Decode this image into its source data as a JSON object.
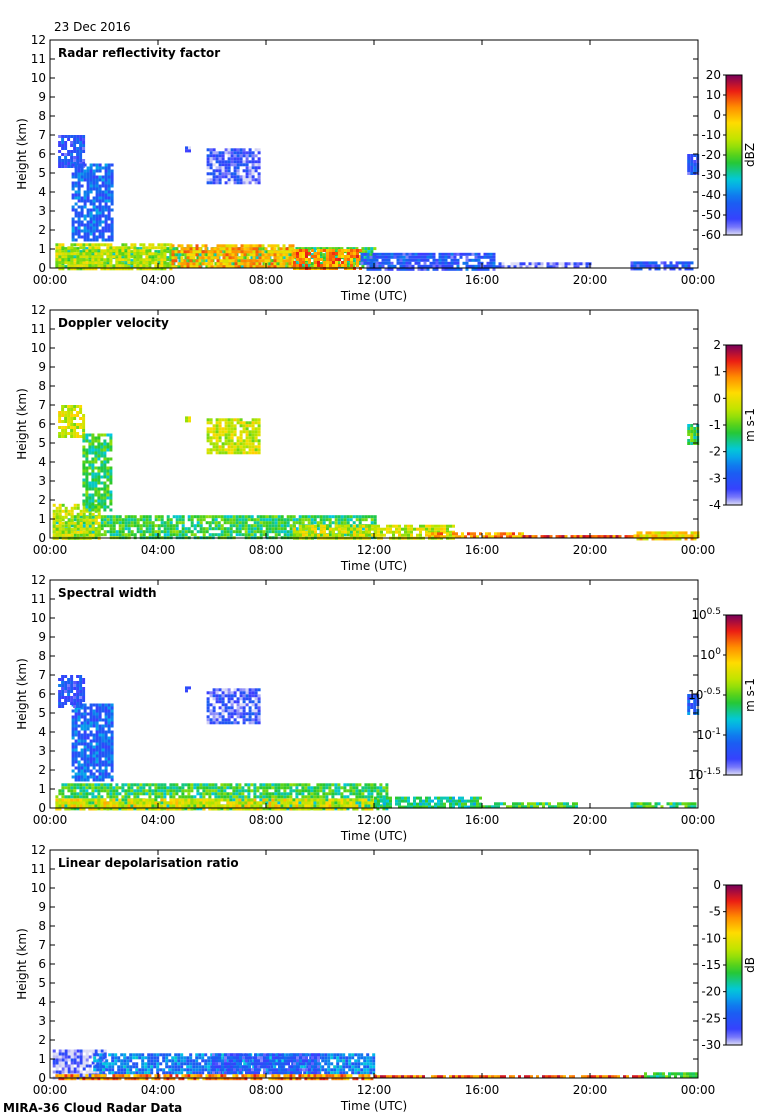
{
  "header": {
    "date": "23 Dec 2016"
  },
  "footer": {
    "label": "MIRA-36 Cloud Radar Data"
  },
  "colors": {
    "cloud_low": "#2a3fe0",
    "cloud_mid": "#27c22a",
    "cloud_high": "#f0a000",
    "max": "#cc1010"
  },
  "chart_data": [
    {
      "type": "heatmap",
      "title": "Radar reflectivity factor",
      "xlabel": "Time (UTC)",
      "ylabel": "Height (km)",
      "xticks": [
        "00:00",
        "04:00",
        "08:00",
        "12:00",
        "16:00",
        "20:00",
        "00:00"
      ],
      "xlim": [
        0,
        24
      ],
      "ylim": [
        0,
        12
      ],
      "yticks": [
        "0",
        "1",
        "2",
        "3",
        "4",
        "5",
        "6",
        "7",
        "8",
        "9",
        "10",
        "11",
        "12"
      ],
      "colorbar": {
        "label": "dBZ",
        "ticks": [
          "20",
          "10",
          "0",
          "-10",
          "-20",
          "-30",
          "-40",
          "-50",
          "-60"
        ]
      },
      "regions": [
        {
          "t": [
            0.2,
            12.0
          ],
          "h": [
            0,
            1.1
          ],
          "level": 0.45
        },
        {
          "t": [
            0.2,
            4.5
          ],
          "h": [
            0,
            1.3
          ],
          "level": 0.6
        },
        {
          "t": [
            4.5,
            9.0
          ],
          "h": [
            0,
            1.25
          ],
          "level": 0.75
        },
        {
          "t": [
            9.0,
            11.5
          ],
          "h": [
            0,
            1.0
          ],
          "level": 0.8
        },
        {
          "t": [
            0.3,
            1.2
          ],
          "h": [
            5.3,
            7.0
          ],
          "level": 0.15
        },
        {
          "t": [
            0.8,
            2.3
          ],
          "h": [
            1.5,
            5.5
          ],
          "level": 0.2
        },
        {
          "t": [
            5.0,
            5.2
          ],
          "h": [
            6.2,
            6.4
          ],
          "level": 0.1
        },
        {
          "t": [
            5.8,
            7.8
          ],
          "h": [
            4.5,
            6.3
          ],
          "level": 0.1
        },
        {
          "t": [
            11.5,
            16.5
          ],
          "h": [
            0,
            0.8
          ],
          "level": 0.15
        },
        {
          "t": [
            16.5,
            20.0
          ],
          "h": [
            0,
            0.3
          ],
          "level": 0.05
        },
        {
          "t": [
            21.5,
            23.9
          ],
          "h": [
            0,
            0.35
          ],
          "level": 0.15
        },
        {
          "t": [
            23.6,
            24.0
          ],
          "h": [
            5.0,
            6.0
          ],
          "level": 0.15
        }
      ]
    },
    {
      "type": "heatmap",
      "title": "Doppler velocity",
      "xlabel": "Time (UTC)",
      "ylabel": "Height (km)",
      "xticks": [
        "00:00",
        "04:00",
        "08:00",
        "12:00",
        "16:00",
        "20:00",
        "00:00"
      ],
      "xlim": [
        0,
        24
      ],
      "ylim": [
        0,
        12
      ],
      "yticks": [
        "0",
        "1",
        "2",
        "3",
        "4",
        "5",
        "6",
        "7",
        "8",
        "9",
        "10",
        "11",
        "12"
      ],
      "colorbar": {
        "label": "m s-1",
        "ticks": [
          "2",
          "1",
          "0",
          "-1",
          "-2",
          "-3",
          "-4"
        ]
      },
      "regions": [
        {
          "t": [
            0.1,
            12.0
          ],
          "h": [
            0,
            1.2
          ],
          "level": 0.45
        },
        {
          "t": [
            0.1,
            1.8
          ],
          "h": [
            0,
            1.8
          ],
          "level": 0.6
        },
        {
          "t": [
            9.0,
            15.0
          ],
          "h": [
            0,
            0.7
          ],
          "level": 0.62
        },
        {
          "t": [
            14.0,
            17.5
          ],
          "h": [
            0,
            0.3
          ],
          "level": 0.78
        },
        {
          "t": [
            17.5,
            24.0
          ],
          "h": [
            0,
            0.15
          ],
          "level": 0.85
        },
        {
          "t": [
            21.5,
            24.0
          ],
          "h": [
            0,
            0.35
          ],
          "level": 0.7
        },
        {
          "t": [
            0.3,
            1.2
          ],
          "h": [
            5.3,
            7.0
          ],
          "level": 0.62
        },
        {
          "t": [
            1.2,
            2.3
          ],
          "h": [
            1.5,
            5.5
          ],
          "level": 0.45
        },
        {
          "t": [
            5.0,
            5.2
          ],
          "h": [
            6.2,
            6.4
          ],
          "level": 0.6
        },
        {
          "t": [
            5.8,
            7.8
          ],
          "h": [
            4.5,
            6.3
          ],
          "level": 0.62
        },
        {
          "t": [
            23.6,
            24.0
          ],
          "h": [
            5.0,
            6.0
          ],
          "level": 0.45
        }
      ]
    },
    {
      "type": "heatmap",
      "title": "Spectral width",
      "xlabel": "Time (UTC)",
      "ylabel": "Height (km)",
      "xticks": [
        "00:00",
        "04:00",
        "08:00",
        "12:00",
        "16:00",
        "20:00",
        "00:00"
      ],
      "xlim": [
        0,
        24
      ],
      "ylim": [
        0,
        12
      ],
      "yticks": [
        "0",
        "1",
        "2",
        "3",
        "4",
        "5",
        "6",
        "7",
        "8",
        "9",
        "10",
        "11",
        "12"
      ],
      "colorbar": {
        "label": "m s-1",
        "ticks": [
          "0.5",
          "0",
          "-0.5",
          "-1",
          "-1.5"
        ],
        "tick_base": "10"
      },
      "regions": [
        {
          "t": [
            0.2,
            12.5
          ],
          "h": [
            0,
            1.3
          ],
          "level": 0.45
        },
        {
          "t": [
            0.2,
            12.0
          ],
          "h": [
            0,
            0.5
          ],
          "level": 0.65
        },
        {
          "t": [
            0.8,
            2.3
          ],
          "h": [
            1.5,
            5.5
          ],
          "level": 0.2
        },
        {
          "t": [
            0.3,
            1.2
          ],
          "h": [
            5.3,
            7.0
          ],
          "level": 0.15
        },
        {
          "t": [
            5.0,
            5.2
          ],
          "h": [
            6.2,
            6.4
          ],
          "level": 0.1
        },
        {
          "t": [
            5.8,
            7.8
          ],
          "h": [
            4.5,
            6.3
          ],
          "level": 0.1
        },
        {
          "t": [
            12.0,
            16.0
          ],
          "h": [
            0,
            0.6
          ],
          "level": 0.4
        },
        {
          "t": [
            16.0,
            19.5
          ],
          "h": [
            0,
            0.3
          ],
          "level": 0.45
        },
        {
          "t": [
            21.5,
            23.9
          ],
          "h": [
            0,
            0.3
          ],
          "level": 0.45
        },
        {
          "t": [
            23.6,
            24.0
          ],
          "h": [
            5.0,
            6.0
          ],
          "level": 0.2
        }
      ]
    },
    {
      "type": "heatmap",
      "title": "Linear depolarisation ratio",
      "xlabel": "Time (UTC)",
      "ylabel": "Height (km)",
      "xticks": [
        "00:00",
        "04:00",
        "08:00",
        "12:00",
        "16:00",
        "20:00",
        "00:00"
      ],
      "xlim": [
        0,
        24
      ],
      "ylim": [
        0,
        12
      ],
      "yticks": [
        "0",
        "1",
        "2",
        "3",
        "4",
        "5",
        "6",
        "7",
        "8",
        "9",
        "10",
        "11",
        "12"
      ],
      "colorbar": {
        "label": "dB",
        "ticks": [
          "0",
          "-5",
          "-10",
          "-15",
          "-20",
          "-25",
          "-30"
        ]
      },
      "regions": [
        {
          "t": [
            0.1,
            2.0
          ],
          "h": [
            0,
            1.5
          ],
          "level": 0.05
        },
        {
          "t": [
            1.6,
            12.0
          ],
          "h": [
            0.2,
            1.3
          ],
          "level": 0.25
        },
        {
          "t": [
            6.0,
            10.0
          ],
          "h": [
            0.3,
            1.3
          ],
          "level": 0.15
        },
        {
          "t": [
            0.2,
            12.0
          ],
          "h": [
            0,
            0.2
          ],
          "level": 0.8
        },
        {
          "t": [
            12.0,
            22.0
          ],
          "h": [
            0,
            0.15
          ],
          "level": 0.85
        },
        {
          "t": [
            22.0,
            24.0
          ],
          "h": [
            0,
            0.3
          ],
          "level": 0.45
        }
      ]
    }
  ]
}
